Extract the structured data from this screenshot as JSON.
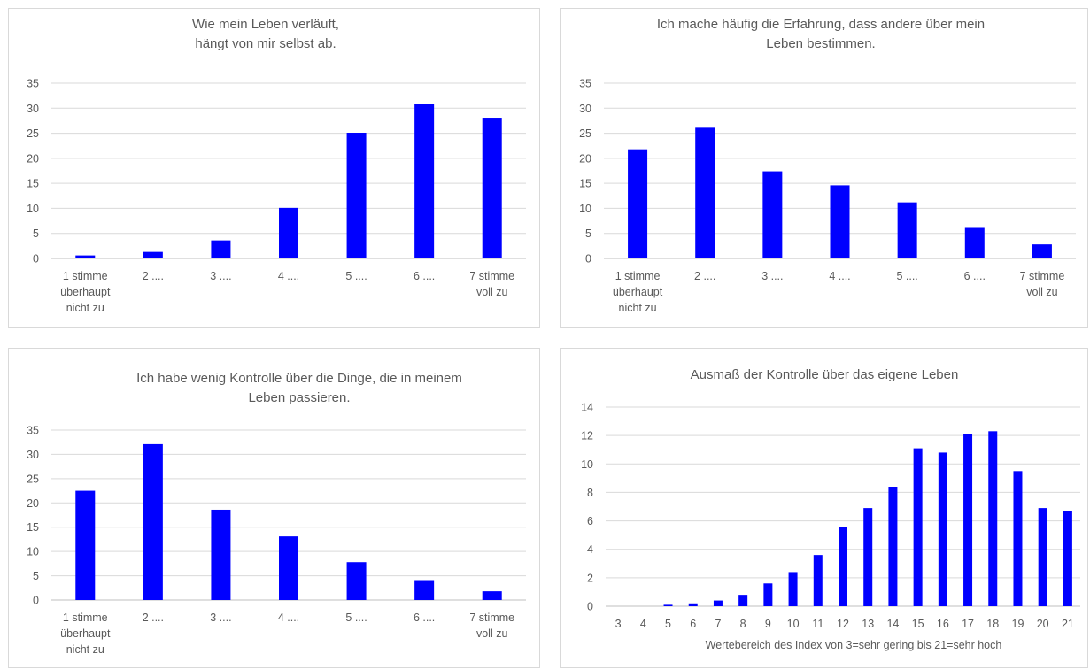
{
  "chart_data": [
    {
      "type": "bar",
      "title_lines": [
        "Wie mein Leben verläuft,",
        "hängt von mir selbst ab."
      ],
      "categories": [
        [
          "1  stimme",
          "überhaupt",
          "nicht zu"
        ],
        [
          "2 ...."
        ],
        [
          "3 ...."
        ],
        [
          "4 ...."
        ],
        [
          "5 ...."
        ],
        [
          "6 ...."
        ],
        [
          "7 stimme",
          "voll zu"
        ]
      ],
      "values": [
        0.6,
        1.3,
        3.6,
        10.1,
        25.1,
        30.8,
        28.1
      ],
      "ylim": [
        0,
        35
      ],
      "yticks": [
        0,
        5,
        10,
        15,
        20,
        25,
        30,
        35
      ],
      "xlabel": "",
      "grid": true,
      "color": "#0000FF"
    },
    {
      "type": "bar",
      "title_lines": [
        "Ich mache häufig die Erfahrung, dass andere über mein",
        "Leben bestimmen."
      ],
      "categories": [
        [
          "1  stimme",
          "überhaupt",
          "nicht zu"
        ],
        [
          "2 ...."
        ],
        [
          "3 ...."
        ],
        [
          "4 ...."
        ],
        [
          "5 ...."
        ],
        [
          "6 ...."
        ],
        [
          "7 stimme",
          "voll zu"
        ]
      ],
      "values": [
        21.8,
        26.1,
        17.4,
        14.6,
        11.2,
        6.1,
        2.8
      ],
      "ylim": [
        0,
        35
      ],
      "yticks": [
        0,
        5,
        10,
        15,
        20,
        25,
        30,
        35
      ],
      "xlabel": "",
      "grid": true,
      "color": "#0000FF"
    },
    {
      "type": "bar",
      "title_lines": [
        "Ich habe wenig Kontrolle über die Dinge, die in meinem",
        "Leben passieren."
      ],
      "categories": [
        [
          "1  stimme",
          "überhaupt",
          "nicht zu"
        ],
        [
          "2 ...."
        ],
        [
          "3 ...."
        ],
        [
          "4 ...."
        ],
        [
          "5 ...."
        ],
        [
          "6 ...."
        ],
        [
          "7 stimme",
          "voll zu"
        ]
      ],
      "values": [
        22.5,
        32.1,
        18.6,
        13.1,
        7.8,
        4.1,
        1.8
      ],
      "ylim": [
        0,
        35
      ],
      "yticks": [
        0,
        5,
        10,
        15,
        20,
        25,
        30,
        35
      ],
      "xlabel": "",
      "grid": true,
      "color": "#0000FF"
    },
    {
      "type": "bar",
      "title_lines": [
        "Ausmaß der Kontrolle über das eigene Leben"
      ],
      "categories": [
        [
          "3"
        ],
        [
          "4"
        ],
        [
          "5"
        ],
        [
          "6"
        ],
        [
          "7"
        ],
        [
          "8"
        ],
        [
          "9"
        ],
        [
          "10"
        ],
        [
          "11"
        ],
        [
          "12"
        ],
        [
          "13"
        ],
        [
          "14"
        ],
        [
          "15"
        ],
        [
          "16"
        ],
        [
          "17"
        ],
        [
          "18"
        ],
        [
          "19"
        ],
        [
          "20"
        ],
        [
          "21"
        ]
      ],
      "values": [
        0,
        0,
        0.1,
        0.2,
        0.4,
        0.8,
        1.6,
        2.4,
        3.6,
        5.6,
        6.9,
        8.4,
        11.1,
        10.8,
        12.1,
        12.3,
        9.5,
        6.9,
        6.7
      ],
      "ylim": [
        0,
        14
      ],
      "yticks": [
        0,
        2,
        4,
        6,
        8,
        10,
        12,
        14
      ],
      "xlabel": "Wertebereich des Index von 3=sehr gering bis 21=sehr hoch",
      "grid": true,
      "color": "#0000FF"
    }
  ]
}
